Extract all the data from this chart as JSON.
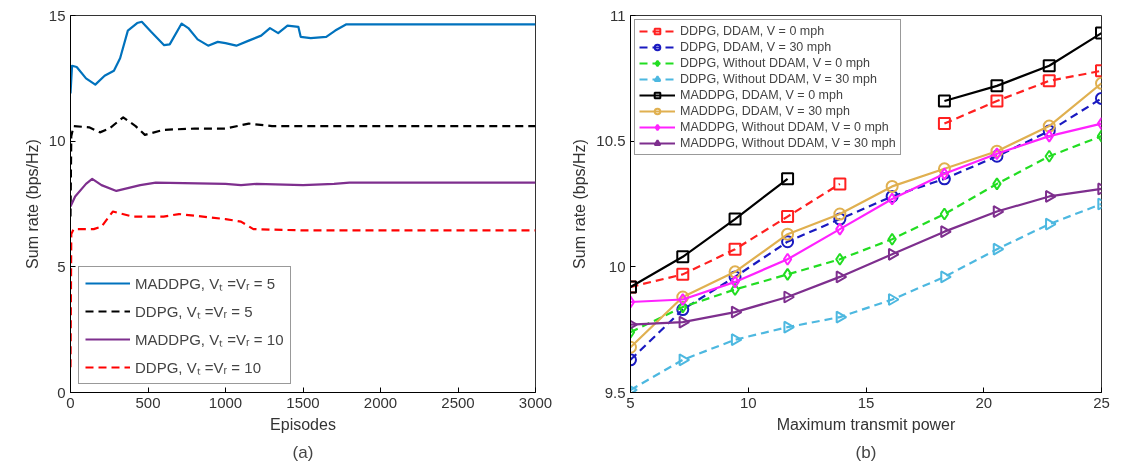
{
  "chart_data": [
    {
      "type": "line",
      "xlabel": "Episodes",
      "ylabel": "Sum rate (bps/Hz)",
      "xlim": [
        0,
        3000
      ],
      "ylim": [
        0,
        15
      ],
      "xticks": [
        0,
        500,
        1000,
        1500,
        2000,
        2500,
        3000
      ],
      "yticks": [
        0,
        5,
        10,
        15
      ],
      "grid": false,
      "legend": "bottom left",
      "marker": "none",
      "annotations": [
        "(a)"
      ],
      "series": [
        {
          "name": "MADDPG, Vₜ =Vᵣ = 5",
          "color": "#0072bd",
          "line_style": "solid",
          "x": [
            0,
            10,
            40,
            100,
            160,
            220,
            280,
            320,
            370,
            430,
            460,
            520,
            604,
            640,
            717,
            760,
            820,
            888,
            950,
            1000,
            1070,
            1150,
            1230,
            1287,
            1340,
            1400,
            1470,
            1485,
            1550,
            1650,
            1708,
            1780,
            3000
          ],
          "values": [
            11.9,
            13.0,
            12.95,
            12.5,
            12.25,
            12.6,
            12.8,
            13.3,
            14.4,
            14.7,
            14.75,
            14.35,
            13.82,
            13.85,
            14.68,
            14.5,
            14.05,
            13.8,
            13.95,
            13.9,
            13.8,
            14.0,
            14.2,
            14.5,
            14.3,
            14.6,
            14.55,
            14.15,
            14.1,
            14.15,
            14.4,
            14.65,
            14.65
          ]
        },
        {
          "name": "DDPG, Vₜ =Vᵣ = 5",
          "color": "#000000",
          "line_style": "dashed",
          "x": [
            0,
            5,
            20,
            120,
            190,
            250,
            340,
            420,
            480,
            600,
            800,
            1000,
            1150,
            1300,
            3000
          ],
          "values": [
            7.0,
            10.2,
            10.6,
            10.55,
            10.35,
            10.5,
            10.95,
            10.6,
            10.25,
            10.45,
            10.5,
            10.5,
            10.7,
            10.6,
            10.6
          ]
        },
        {
          "name": "MADDPG, Vₜ =Vᵣ = 10",
          "color": "#7e2f8e",
          "line_style": "solid",
          "x": [
            0,
            30,
            100,
            140,
            200,
            296,
            450,
            550,
            1000,
            1100,
            1200,
            1500,
            1700,
            1800,
            3000
          ],
          "values": [
            7.4,
            7.8,
            8.3,
            8.5,
            8.25,
            8.02,
            8.25,
            8.35,
            8.3,
            8.25,
            8.3,
            8.25,
            8.3,
            8.35,
            8.35
          ]
        },
        {
          "name": "DDPG, Vₜ =Vᵣ = 10",
          "color": "#ff0000",
          "line_style": "dashed",
          "x": [
            0,
            5,
            20,
            150,
            200,
            273,
            400,
            600,
            700,
            1000,
            1100,
            1180,
            1500,
            3000
          ],
          "values": [
            1.0,
            6.3,
            6.5,
            6.5,
            6.6,
            7.2,
            7.0,
            7.0,
            7.1,
            6.9,
            6.8,
            6.5,
            6.45,
            6.45
          ]
        }
      ]
    },
    {
      "type": "line",
      "xlabel": "Maximum transmit power",
      "ylabel": "Sum rate (bps/Hz)",
      "xlim": [
        5,
        25
      ],
      "ylim": [
        9.5,
        11
      ],
      "xticks": [
        5,
        10,
        15,
        20,
        25
      ],
      "yticks": [
        9.5,
        10,
        10.5,
        11
      ],
      "grid": false,
      "legend": "top left",
      "annotations": [
        "(b)"
      ],
      "x": [
        5,
        7.22,
        9.44,
        11.67,
        13.89,
        16.11,
        18.33,
        20.56,
        22.78,
        25
      ],
      "series": [
        {
          "name": "DDPG, DDAM, V = 0 mph",
          "color": "#ff2020",
          "line_style": "dashed",
          "marker": "square",
          "values": [
            9.92,
            9.97,
            10.07,
            10.2,
            10.33,
            null,
            10.57,
            10.66,
            10.74,
            10.78
          ]
        },
        {
          "name": "DDPG, DDAM, V = 30 mph",
          "color": "#1a1ac0",
          "line_style": "dashed",
          "marker": "circle",
          "values": [
            9.63,
            9.83,
            9.96,
            10.1,
            10.19,
            10.28,
            10.35,
            10.44,
            10.54,
            10.67
          ]
        },
        {
          "name": "DDPG, Without DDAM, V = 0 mph",
          "color": "#22dd22",
          "line_style": "dashed",
          "marker": "diamond",
          "values": [
            9.74,
            9.84,
            9.91,
            9.97,
            10.03,
            10.11,
            10.21,
            10.33,
            10.44,
            10.52
          ]
        },
        {
          "name": "DDPG, Without DDAM, V = 30 mph",
          "color": "#4db8e0",
          "line_style": "dashed",
          "marker": "triangle",
          "values": [
            9.51,
            9.63,
            9.71,
            9.76,
            9.8,
            9.87,
            9.96,
            10.07,
            10.17,
            10.25
          ]
        },
        {
          "name": "MADDPG, DDAM, V = 0 mph",
          "color": "#000000",
          "line_style": "solid",
          "marker": "square",
          "values": [
            9.92,
            10.04,
            10.19,
            10.35,
            null,
            null,
            10.66,
            10.72,
            10.8,
            10.93
          ]
        },
        {
          "name": "MADDPG, DDAM, V = 30 mph",
          "color": "#e0b050",
          "line_style": "solid",
          "marker": "circle",
          "values": [
            9.68,
            9.88,
            9.98,
            10.13,
            10.21,
            10.32,
            10.39,
            10.46,
            10.56,
            10.73
          ]
        },
        {
          "name": "MADDPG, Without DDAM, V = 0 mph",
          "color": "#ff22ff",
          "line_style": "solid",
          "marker": "diamond",
          "values": [
            9.86,
            9.87,
            9.94,
            10.03,
            10.15,
            10.27,
            10.37,
            10.45,
            10.52,
            10.57
          ]
        },
        {
          "name": "MADDPG, Without DDAM, V = 30 mph",
          "color": "#7e2f8e",
          "line_style": "solid",
          "marker": "triangle",
          "values": [
            9.77,
            9.78,
            9.82,
            9.88,
            9.96,
            10.05,
            10.14,
            10.22,
            10.28,
            10.31
          ]
        }
      ]
    }
  ]
}
